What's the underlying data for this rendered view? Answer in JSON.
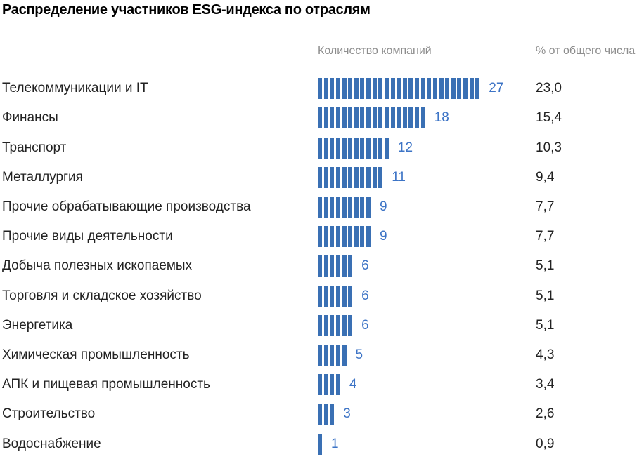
{
  "title": "Распределение участников ESG-индекса по отраслям",
  "columns": {
    "count_header": "Количество компаний",
    "percent_header": "% от общего числа"
  },
  "colors": {
    "bar": "#3a70b4",
    "value_text": "#3d74c6",
    "label_text": "#222222",
    "header_text": "#8d8d8d",
    "title_text": "#000000"
  },
  "rows": [
    {
      "label": "Телекоммуникации и IT",
      "count": 27,
      "percent": "23,0"
    },
    {
      "label": "Финансы",
      "count": 18,
      "percent": "15,4"
    },
    {
      "label": "Транспорт",
      "count": 12,
      "percent": "10,3"
    },
    {
      "label": "Металлургия",
      "count": 11,
      "percent": "9,4"
    },
    {
      "label": "Прочие обрабатывающие производства",
      "count": 9,
      "percent": "7,7"
    },
    {
      "label": "Прочие виды деятельности",
      "count": 9,
      "percent": "7,7"
    },
    {
      "label": "Добыча полезных ископаемых",
      "count": 6,
      "percent": "5,1"
    },
    {
      "label": "Торговля и складское хозяйство",
      "count": 6,
      "percent": "5,1"
    },
    {
      "label": "Энергетика",
      "count": 6,
      "percent": "5,1"
    },
    {
      "label": "Химическая промышленность",
      "count": 5,
      "percent": "4,3"
    },
    {
      "label": "АПК и пищевая промышленность",
      "count": 4,
      "percent": "3,4"
    },
    {
      "label": "Строительство",
      "count": 3,
      "percent": "2,6"
    },
    {
      "label": "Водоснабжение",
      "count": 1,
      "percent": "0,9"
    }
  ],
  "chart_data": {
    "type": "bar",
    "orientation": "horizontal",
    "style": "segmented-unit-bars (one segment per company)",
    "title": "Распределение участников ESG-индекса по отраслям",
    "categories": [
      "Телекоммуникации и IT",
      "Финансы",
      "Транспорт",
      "Металлургия",
      "Прочие обрабатывающие производства",
      "Прочие виды деятельности",
      "Добыча полезных ископаемых",
      "Торговля и складское хозяйство",
      "Энергетика",
      "Химическая промышленность",
      "АПК и пищевая промышленность",
      "Строительство",
      "Водоснабжение"
    ],
    "series": [
      {
        "name": "Количество компаний",
        "values": [
          27,
          18,
          12,
          11,
          9,
          9,
          6,
          6,
          6,
          5,
          4,
          3,
          1
        ]
      },
      {
        "name": "% от общего числа",
        "values": [
          23.0,
          15.4,
          10.3,
          9.4,
          7.7,
          7.7,
          5.1,
          5.1,
          5.1,
          4.3,
          3.4,
          2.6,
          0.9
        ]
      }
    ],
    "xlabel": "",
    "ylabel": "",
    "grid": false,
    "legend_position": "none",
    "data_labels": true,
    "bar_color": "#3a70b4"
  }
}
